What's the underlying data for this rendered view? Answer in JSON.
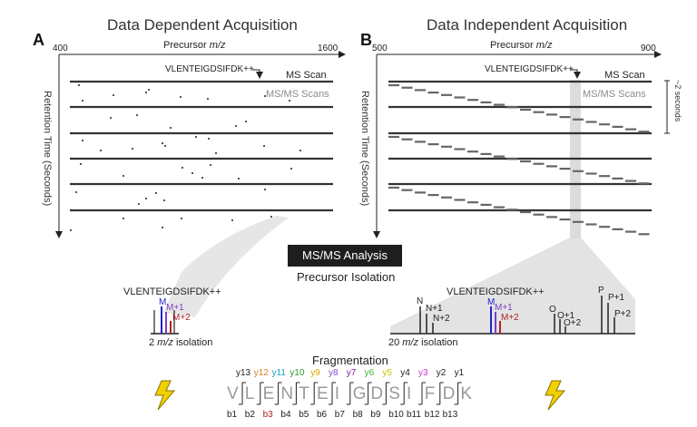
{
  "panel_a": {
    "letter": "A",
    "title": "Data Dependent Acquisition",
    "axis_title_prefix": "Precursor ",
    "axis_title_unit": "m/z",
    "axis_min": "400",
    "axis_max": "1600",
    "retention_label": "Retention Time (Seconds)",
    "peptide": "VLENTEIGDSIFDK++",
    "ms_scan": "MS Scan",
    "msms_scans": "MS/MS Scans"
  },
  "panel_b": {
    "letter": "B",
    "title": "Data Independent Acquisition",
    "axis_title_prefix": "Precursor ",
    "axis_title_unit": "m/z",
    "axis_min": "500",
    "axis_max": "900",
    "retention_label": "Retention Time (Seconds)",
    "peptide": "VLENTEIGDSIFDK++",
    "ms_scan": "MS Scan",
    "msms_scans": "MS/MS Scans",
    "cycle_label": "~2 seconds"
  },
  "middle": {
    "analysis": "MS/MS Analysis",
    "isolation": "Precursor Isolation"
  },
  "isolation_left": {
    "peptide": "VLENTEIGDSIFDK++",
    "peaks": [
      "M",
      "M+1",
      "M+2"
    ],
    "width_value": "2 ",
    "width_unit": "m/z",
    "width_suffix": " isolation"
  },
  "isolation_right": {
    "peptide": "VLENTEIGDSIFDK++",
    "peaks_n": [
      "N",
      "N+1",
      "N+2"
    ],
    "peaks_m": [
      "M",
      "M+1",
      "M+2"
    ],
    "peaks_o": [
      "O",
      "O+1",
      "O+2"
    ],
    "peaks_p": [
      "P",
      "P+1",
      "P+2"
    ],
    "width_value": "20 ",
    "width_unit": "m/z",
    "width_suffix": " isolation"
  },
  "fragmentation": {
    "title": "Fragmentation",
    "residues": [
      "V",
      "L",
      "E",
      "N",
      "T",
      "E",
      "I",
      "G",
      "D",
      "S",
      "I",
      "F",
      "D",
      "K"
    ],
    "y_ions": [
      "y13",
      "y12",
      "y11",
      "y10",
      "y9",
      "y8",
      "y7",
      "y6",
      "y5",
      "y4",
      "y3",
      "y2",
      "y1"
    ],
    "b_ions": [
      "b1",
      "b2",
      "b3",
      "b4",
      "b5",
      "b6",
      "b7",
      "b8",
      "b9",
      "b10",
      "b11",
      "b12",
      "b13"
    ],
    "y_colors": [
      "#222222",
      "#e07b20",
      "#1aa0c8",
      "#2a9a2a",
      "#e0a800",
      "#8a4fc8",
      "#7a1fa0",
      "#3bb33b",
      "#c8c800",
      "#222222",
      "#cc33cc",
      "#222222",
      "#222222"
    ],
    "b_colors": [
      "#222222",
      "#222222",
      "#b22222",
      "#222222",
      "#222222",
      "#222222",
      "#222222",
      "#222222",
      "#222222",
      "#222222",
      "#222222",
      "#222222",
      "#222222"
    ]
  },
  "colors": {
    "m_peak": "#2222cc",
    "m1_peak": "#7a3fc8",
    "m2_peak": "#b22222",
    "scan_line": "#333333",
    "msms_label": "#8a8a8a",
    "lightning": "#f2d000"
  }
}
